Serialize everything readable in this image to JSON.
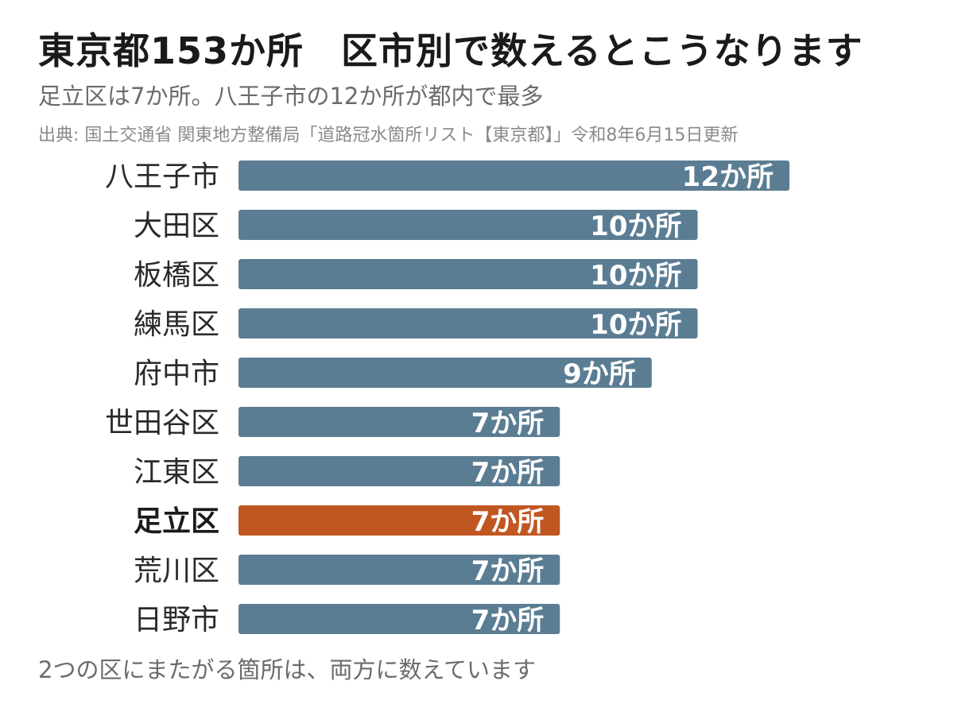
{
  "title": "東京都153か所　区市別で数えるとこうなります",
  "subtitle": "足立区は7か所。八王子市の12か所が都内で最多",
  "source": "出典: 国土交通省 関東地方整備局「道路冠水箇所リスト【東京都】」令和8年6月15日更新",
  "footnote": "2つの区にまたがる箇所は、両方に数えています",
  "colors": {
    "bar": "#5b7d93",
    "highlight": "#c05621"
  },
  "chart_data": {
    "type": "bar",
    "orientation": "horizontal",
    "categories": [
      "八王子市",
      "大田区",
      "板橋区",
      "練馬区",
      "府中市",
      "世田谷区",
      "江東区",
      "足立区",
      "荒川区",
      "日野市"
    ],
    "values": [
      12,
      10,
      10,
      10,
      9,
      7,
      7,
      7,
      7,
      7
    ],
    "value_labels": [
      "12か所",
      "10か所",
      "10か所",
      "10か所",
      "9か所",
      "7か所",
      "7か所",
      "7か所",
      "7か所",
      "7か所"
    ],
    "highlight": "足立区",
    "xlim": [
      0,
      12
    ],
    "grid": false,
    "legend": "none"
  }
}
